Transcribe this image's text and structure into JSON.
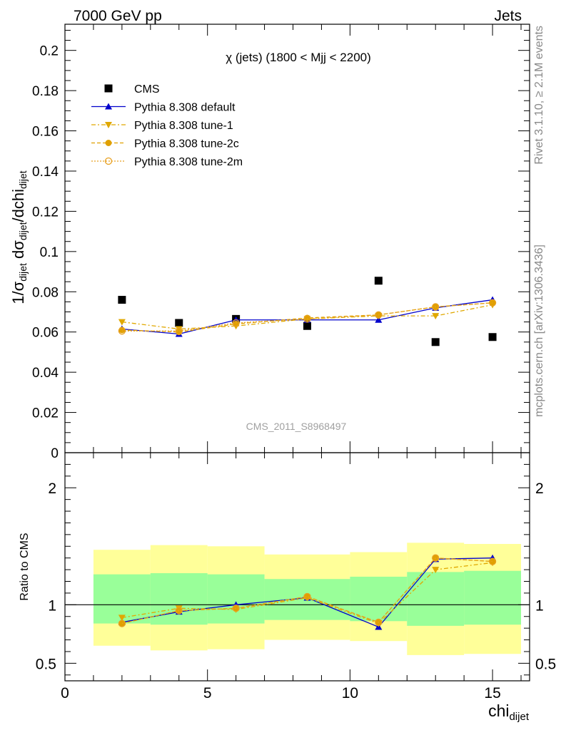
{
  "header": {
    "left": "7000 GeV pp",
    "right": "Jets"
  },
  "side_labels": {
    "rivet": "Rivet 3.1.10, ≥ 2.1M events",
    "source": "mcplots.cern.ch [arXiv:1306.3436]"
  },
  "chart_data": [
    {
      "type": "scatter",
      "title": "χ (jets) (1800 < Mjj < 2200)",
      "ylabel": "1/σ_dijet dσ_dijet/dchi_dijet",
      "xlabel": "chi_dijet",
      "watermark": "CMS_2011_S8968497",
      "xlim": [
        0,
        16.3
      ],
      "ylim": [
        0,
        0.213
      ],
      "xticks": [
        0,
        5,
        10,
        15
      ],
      "yticks": [
        0,
        0.02,
        0.04,
        0.06,
        0.08,
        0.1,
        0.12,
        0.14,
        0.16,
        0.18,
        0.2
      ],
      "ytick_labels": [
        "0",
        "0.02",
        "0.04",
        "0.06",
        "0.08",
        "0.1",
        "0.12",
        "0.14",
        "0.16",
        "0.18",
        "0.2"
      ],
      "legend_position": "top-left",
      "x": [
        2,
        4,
        6,
        8.5,
        11,
        13,
        15
      ],
      "series": [
        {
          "name": "CMS",
          "marker": "square",
          "color": "#000000",
          "values": [
            0.076,
            0.0645,
            0.0665,
            0.063,
            0.0855,
            0.055,
            0.0575
          ]
        },
        {
          "name": "Pythia 8.308 default",
          "marker": "triangle-up",
          "color": "#0000cc",
          "dash": "",
          "values": [
            0.0615,
            0.059,
            0.066,
            0.066,
            0.066,
            0.072,
            0.076
          ]
        },
        {
          "name": "Pythia 8.308 tune-1",
          "marker": "triangle-down",
          "color": "#e0a800",
          "dash": "6 3 2 3",
          "values": [
            0.065,
            0.0615,
            0.063,
            0.0665,
            0.068,
            0.068,
            0.0735
          ]
        },
        {
          "name": "Pythia 8.308 tune-2c",
          "marker": "circle",
          "color": "#e0a000",
          "dash": "5 3",
          "values": [
            0.061,
            0.06,
            0.064,
            0.067,
            0.0685,
            0.0725,
            0.0745
          ]
        },
        {
          "name": "Pythia 8.308 tune-2m",
          "marker": "circle-open",
          "color": "#e8a020",
          "dash": "2 2",
          "values": [
            0.0605,
            0.0605,
            0.0645,
            0.0665,
            0.0685,
            0.0725,
            0.0745
          ]
        }
      ]
    },
    {
      "type": "line",
      "ylabel": "Ratio to CMS",
      "xlim": [
        0,
        16.3
      ],
      "ylim": [
        0.35,
        2.3
      ],
      "yticks": [
        0.5,
        1,
        2
      ],
      "ytick_labels": [
        "0.5",
        "1",
        "2"
      ],
      "band_bins": [
        {
          "x0": 1,
          "x1": 3,
          "green": [
            0.84,
            1.26
          ],
          "yellow": [
            0.65,
            1.47
          ]
        },
        {
          "x0": 3,
          "x1": 5,
          "green": [
            0.83,
            1.27
          ],
          "yellow": [
            0.61,
            1.51
          ]
        },
        {
          "x0": 5,
          "x1": 7,
          "green": [
            0.84,
            1.26
          ],
          "yellow": [
            0.62,
            1.5
          ]
        },
        {
          "x0": 7,
          "x1": 10,
          "green": [
            0.87,
            1.22
          ],
          "yellow": [
            0.7,
            1.43
          ]
        },
        {
          "x0": 10,
          "x1": 12,
          "green": [
            0.86,
            1.24
          ],
          "yellow": [
            0.69,
            1.45
          ]
        },
        {
          "x0": 12,
          "x1": 14,
          "green": [
            0.82,
            1.28
          ],
          "yellow": [
            0.57,
            1.53
          ]
        },
        {
          "x0": 14,
          "x1": 16,
          "green": [
            0.83,
            1.29
          ],
          "yellow": [
            0.58,
            1.52
          ]
        }
      ],
      "x": [
        2,
        4,
        6,
        8.5,
        11,
        13,
        15
      ],
      "series": [
        {
          "name": "Pythia 8.308 default",
          "marker": "triangle-up",
          "color": "#0000cc",
          "dash": "",
          "values": [
            0.85,
            0.94,
            1.0,
            1.06,
            0.81,
            1.39,
            1.4
          ]
        },
        {
          "name": "Pythia 8.308 tune-1",
          "marker": "triangle-down",
          "color": "#e0a800",
          "dash": "6 3 2 3",
          "values": [
            0.89,
            0.97,
            0.96,
            1.06,
            0.84,
            1.3,
            1.36
          ]
        },
        {
          "name": "Pythia 8.308 tune-2c",
          "marker": "circle",
          "color": "#e0a000",
          "dash": "5 3",
          "values": [
            0.84,
            0.95,
            0.97,
            1.07,
            0.85,
            1.4,
            1.37
          ]
        },
        {
          "name": "Pythia 8.308 tune-2m",
          "marker": "circle-open",
          "color": "#e8a020",
          "dash": "2 2",
          "values": [
            0.84,
            0.95,
            0.97,
            1.07,
            0.85,
            1.4,
            1.37
          ]
        }
      ]
    }
  ]
}
